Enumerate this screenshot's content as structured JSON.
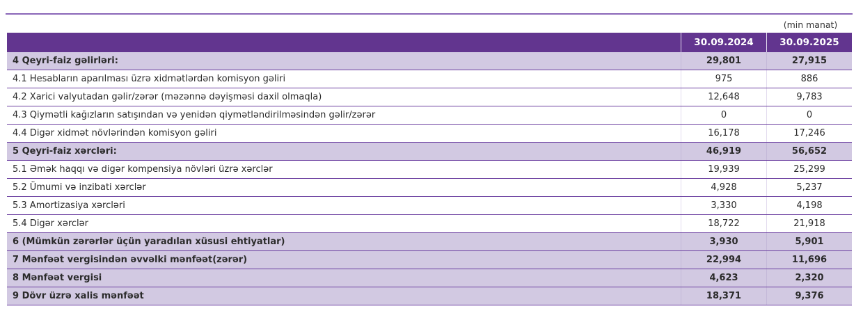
{
  "unit_note": "(min manat)",
  "columns": [
    "",
    "30.09.2024",
    "30.09.2025"
  ],
  "rows": [
    {
      "label": "4 Qeyri-faiz gəlirləri:",
      "v1": "29,801",
      "v2": "27,915",
      "bold": true
    },
    {
      "label": "4.1 Hesabların aparılması üzrə xidmətlərdən komisyon gəliri",
      "v1": "975",
      "v2": "886",
      "bold": false
    },
    {
      "label": "4.2 Xarici valyutadan gəlir/zərər (məzənnə dəyişməsi daxil olmaqla)",
      "v1": "12,648",
      "v2": "9,783",
      "bold": false
    },
    {
      "label": "4.3 Qiymətli kağızların satışından və yenidən qiymətləndirilməsindən gəlir/zərər",
      "v1": "0",
      "v2": "0",
      "bold": false
    },
    {
      "label": "4.4 Digər xidmət növlərindən komisyon gəliri",
      "v1": "16,178",
      "v2": "17,246",
      "bold": false
    },
    {
      "label": "5 Qeyri-faiz xərcləri:",
      "v1": "46,919",
      "v2": "56,652",
      "bold": true
    },
    {
      "label": "5.1 Əmək haqqı və digər kompensiya növləri üzrə xərclər",
      "v1": "19,939",
      "v2": "25,299",
      "bold": false
    },
    {
      "label": "5.2 Ümumi və inzibati xərclər",
      "v1": "4,928",
      "v2": "5,237",
      "bold": false
    },
    {
      "label": "5.3 Amortizasiya xərcləri",
      "v1": "3,330",
      "v2": "4,198",
      "bold": false
    },
    {
      "label": "5.4 Digər xərclər",
      "v1": "18,722",
      "v2": "21,918",
      "bold": false
    },
    {
      "label": "6 (Mümkün zərərlər üçün yaradılan xüsusi ehtiyatlar)",
      "v1": "3,930",
      "v2": "5,901",
      "bold": true
    },
    {
      "label": "7 Mənfəət vergisindən əvvəlki mənfəət(zərər)",
      "v1": "22,994",
      "v2": "11,696",
      "bold": true
    },
    {
      "label": "8 Mənfəət vergisi",
      "v1": "4,623",
      "v2": "2,320",
      "bold": true
    },
    {
      "label": "9 Dövr üzrə xalis mənfəət",
      "v1": "18,371",
      "v2": "9,376",
      "bold": true
    }
  ],
  "colors": {
    "header": "#62358f",
    "highlight": "#d2c9e2",
    "rule": "#6b3fa0"
  }
}
